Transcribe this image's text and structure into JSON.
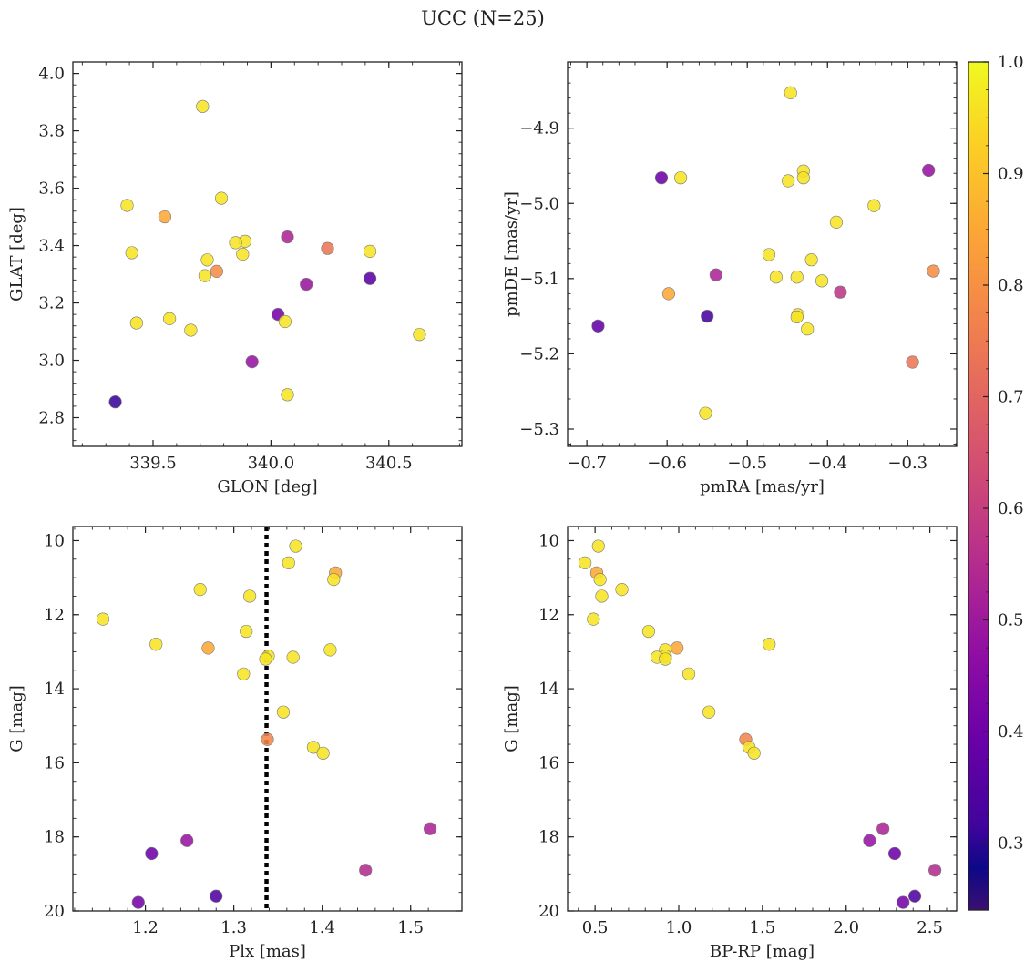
{
  "figure": {
    "title": "UCC (N=25)"
  },
  "colorbar": {
    "colormap": "plasma",
    "range": [
      0.24,
      1.0
    ],
    "ticks": [
      0.3,
      0.4,
      0.5,
      0.6,
      0.7,
      0.8,
      0.9,
      1.0
    ],
    "tick_labels": [
      "0.3",
      "0.4",
      "0.5",
      "0.6",
      "0.7",
      "0.8",
      "0.9",
      "1.0"
    ]
  },
  "chart_data": [
    {
      "type": "scatter",
      "xlabel": "GLON [deg]",
      "ylabel": "GLAT [deg]",
      "xlim": [
        339.16,
        340.81
      ],
      "ylim": [
        2.7,
        4.04
      ],
      "xticks": [
        339.5,
        340.0,
        340.5
      ],
      "xtick_labels": [
        "339.5",
        "340.0",
        "340.5"
      ],
      "yticks": [
        2.8,
        3.0,
        3.2,
        3.4,
        3.6,
        3.8,
        4.0
      ],
      "ytick_labels": [
        "2.8",
        "3.0",
        "3.2",
        "3.4",
        "3.6",
        "3.8",
        "4.0"
      ],
      "x": [
        339.71,
        339.39,
        339.79,
        339.41,
        339.55,
        339.89,
        339.85,
        339.73,
        339.88,
        340.07,
        340.24,
        340.42,
        339.72,
        339.77,
        340.15,
        340.42,
        339.43,
        339.57,
        339.66,
        340.03,
        340.06,
        340.63,
        339.92,
        340.07,
        339.34
      ],
      "y": [
        3.885,
        3.54,
        3.565,
        3.375,
        3.5,
        3.415,
        3.41,
        3.35,
        3.37,
        3.43,
        3.39,
        3.38,
        3.295,
        3.31,
        3.265,
        3.285,
        3.13,
        3.145,
        3.105,
        3.16,
        3.135,
        3.09,
        2.995,
        2.88,
        2.855
      ],
      "color_values": [
        0.96,
        0.96,
        0.96,
        0.96,
        0.84,
        0.96,
        0.96,
        0.96,
        0.96,
        0.5,
        0.72,
        0.96,
        0.96,
        0.78,
        0.46,
        0.32,
        0.96,
        0.96,
        0.96,
        0.38,
        0.96,
        0.96,
        0.45,
        0.96,
        0.26
      ]
    },
    {
      "type": "scatter",
      "xlabel": "pmRA [mas/yr]",
      "ylabel": "pmDE [mas/yr]",
      "xlim": [
        -0.724,
        -0.239
      ],
      "ylim": [
        -5.323,
        -4.812
      ],
      "xticks": [
        -0.7,
        -0.6,
        -0.5,
        -0.4,
        -0.3
      ],
      "xtick_labels": [
        "−0.7",
        "−0.6",
        "−0.5",
        "−0.4",
        "−0.3"
      ],
      "yticks": [
        -5.3,
        -5.2,
        -5.1,
        -5.0,
        -4.9
      ],
      "ytick_labels": [
        "−5.3",
        "−5.2",
        "−5.1",
        "−5.0",
        "−4.9"
      ],
      "x": [
        -0.446,
        -0.43,
        -0.43,
        -0.449,
        -0.583,
        -0.607,
        -0.274,
        -0.342,
        -0.389,
        -0.473,
        -0.464,
        -0.42,
        -0.438,
        -0.407,
        -0.268,
        -0.539,
        -0.598,
        -0.384,
        -0.437,
        -0.438,
        -0.425,
        -0.55,
        -0.686,
        -0.294,
        -0.552
      ],
      "y": [
        -4.853,
        -4.957,
        -4.966,
        -4.97,
        -4.966,
        -4.966,
        -4.956,
        -5.003,
        -5.025,
        -5.068,
        -5.098,
        -5.075,
        -5.098,
        -5.103,
        -5.09,
        -5.095,
        -5.12,
        -5.118,
        -5.148,
        -5.151,
        -5.167,
        -5.15,
        -5.163,
        -5.211,
        -5.279
      ],
      "color_values": [
        0.96,
        0.96,
        0.96,
        0.96,
        0.96,
        0.36,
        0.45,
        0.96,
        0.96,
        0.96,
        0.96,
        0.96,
        0.96,
        0.96,
        0.78,
        0.5,
        0.84,
        0.55,
        0.96,
        0.96,
        0.96,
        0.28,
        0.34,
        0.72,
        0.96
      ]
    },
    {
      "type": "scatter",
      "xlabel": "Plx [mas]",
      "ylabel": "G [mag]",
      "xlim": [
        1.118,
        1.558
      ],
      "ylim": [
        20.0,
        9.62
      ],
      "xticks": [
        1.2,
        1.3,
        1.4,
        1.5
      ],
      "xtick_labels": [
        "1.2",
        "1.3",
        "1.4",
        "1.5"
      ],
      "yticks": [
        10,
        12,
        14,
        16,
        18,
        20
      ],
      "ytick_labels": [
        "10",
        "12",
        "14",
        "16",
        "18",
        "20"
      ],
      "vline": 1.337,
      "x": [
        1.37,
        1.362,
        1.415,
        1.413,
        1.262,
        1.318,
        1.152,
        1.314,
        1.212,
        1.271,
        1.409,
        1.339,
        1.367,
        1.336,
        1.311,
        1.356,
        1.338,
        1.39,
        1.401,
        1.522,
        1.247,
        1.207,
        1.449,
        1.28,
        1.192
      ],
      "y": [
        10.15,
        10.6,
        10.87,
        11.05,
        11.32,
        11.5,
        12.12,
        12.45,
        12.8,
        12.9,
        12.95,
        13.12,
        13.15,
        13.2,
        13.6,
        14.63,
        15.37,
        15.58,
        15.74,
        17.78,
        18.1,
        18.45,
        18.9,
        19.6,
        19.77
      ],
      "color_values": [
        0.96,
        0.96,
        0.84,
        0.96,
        0.96,
        0.96,
        0.96,
        0.96,
        0.96,
        0.84,
        0.96,
        0.96,
        0.96,
        0.96,
        0.96,
        0.96,
        0.76,
        0.96,
        0.96,
        0.5,
        0.45,
        0.36,
        0.52,
        0.3,
        0.38
      ]
    },
    {
      "type": "scatter",
      "xlabel": "BP-RP [mag]",
      "ylabel": "G [mag]",
      "xlim": [
        0.336,
        2.66
      ],
      "ylim": [
        20.0,
        9.62
      ],
      "xticks": [
        0.5,
        1.0,
        1.5,
        2.0,
        2.5
      ],
      "xtick_labels": [
        "0.5",
        "1.0",
        "1.5",
        "2.0",
        "2.5"
      ],
      "yticks": [
        10,
        12,
        14,
        16,
        18,
        20
      ],
      "ytick_labels": [
        "10",
        "12",
        "14",
        "16",
        "18",
        "20"
      ],
      "x": [
        0.52,
        0.44,
        0.51,
        0.53,
        0.54,
        0.66,
        0.49,
        0.82,
        1.54,
        0.92,
        0.99,
        0.92,
        0.87,
        0.92,
        1.06,
        1.18,
        1.4,
        1.42,
        1.45,
        2.22,
        2.14,
        2.29,
        2.53,
        2.41,
        2.34
      ],
      "y": [
        10.15,
        10.6,
        10.87,
        11.05,
        11.5,
        11.32,
        12.12,
        12.45,
        12.8,
        12.95,
        12.9,
        13.12,
        13.15,
        13.2,
        13.6,
        14.63,
        15.37,
        15.58,
        15.74,
        17.78,
        18.1,
        18.45,
        18.9,
        19.6,
        19.77
      ],
      "color_values": [
        0.96,
        0.96,
        0.84,
        0.96,
        0.96,
        0.96,
        0.96,
        0.96,
        0.96,
        0.96,
        0.84,
        0.96,
        0.96,
        0.96,
        0.96,
        0.96,
        0.76,
        0.96,
        0.96,
        0.5,
        0.45,
        0.36,
        0.52,
        0.3,
        0.38
      ]
    }
  ]
}
